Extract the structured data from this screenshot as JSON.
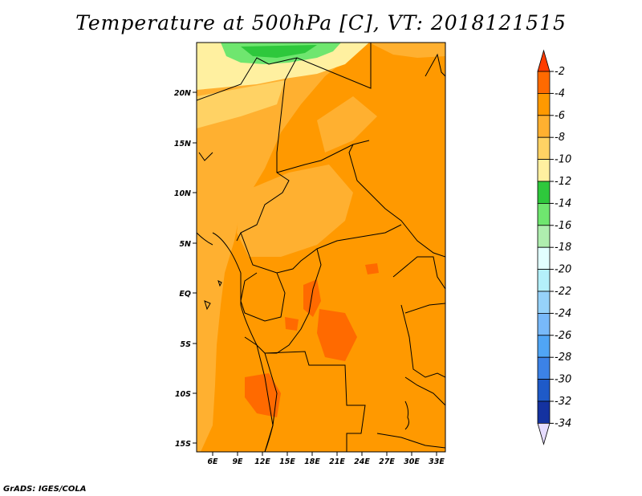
{
  "title": "Temperature at 500hPa [C], VT: 2018121515",
  "credit": "GrADS: IGES/COLA",
  "map": {
    "lat_ticks": [
      "20N",
      "15N",
      "10N",
      "5N",
      "EQ",
      "5S",
      "10S",
      "15S"
    ],
    "lon_ticks": [
      "6E",
      "9E",
      "12E",
      "15E",
      "18E",
      "21E",
      "24E",
      "27E",
      "30E",
      "33E"
    ]
  },
  "colorbar": {
    "labels": [
      "-2",
      "-4",
      "-6",
      "-8",
      "-10",
      "-12",
      "-14",
      "-16",
      "-18",
      "-20",
      "-22",
      "-24",
      "-26",
      "-28",
      "-30",
      "-32",
      "-34"
    ],
    "colors": [
      "#ff3c00",
      "#ff6a00",
      "#ff9900",
      "#ffb030",
      "#ffd264",
      "#fff0a0",
      "#2ec83c",
      "#6fe66f",
      "#afeeaf",
      "#e1ffff",
      "#b4f0fa",
      "#96d2fa",
      "#78b9fa",
      "#50a5f5",
      "#3c82e6",
      "#1e5ac8",
      "#1432a0",
      "#0c0e6e",
      "#e6dcff"
    ]
  }
}
